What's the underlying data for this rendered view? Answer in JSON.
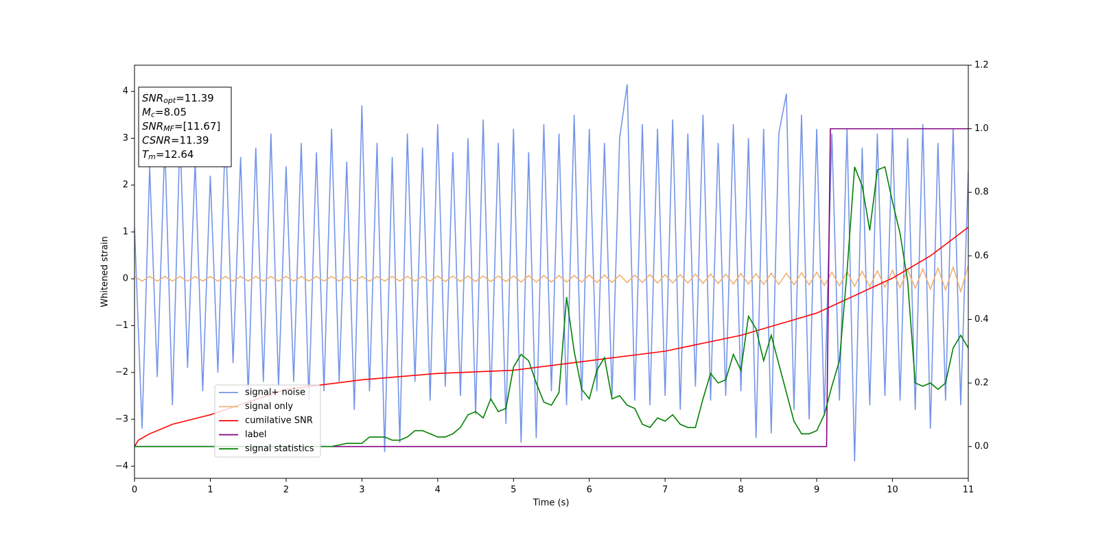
{
  "chart_data": {
    "type": "line",
    "xlabel": "Time (s)",
    "ylabel": "Whitened strain",
    "xlim": [
      0,
      11
    ],
    "xticks": [
      0,
      1,
      2,
      3,
      4,
      5,
      6,
      7,
      8,
      9,
      10,
      11
    ],
    "ylim": [
      -4.26,
      4.56
    ],
    "yticks": [
      {
        "value": -4,
        "label": "−4"
      },
      {
        "value": -3,
        "label": "−3"
      },
      {
        "value": -2,
        "label": "−2"
      },
      {
        "value": -1,
        "label": "−1"
      },
      0,
      1,
      2,
      3,
      4
    ],
    "y2lim": [
      -0.1,
      1.2
    ],
    "y2ticks": [
      {
        "value": 0,
        "label": "0.0"
      },
      {
        "value": 0.2,
        "label": "0.2"
      },
      {
        "value": 0.4,
        "label": "0.4"
      },
      {
        "value": 0.6,
        "label": "0.6"
      },
      {
        "value": 0.8,
        "label": "0.8"
      },
      {
        "value": 1.0,
        "label": "1.0"
      },
      {
        "value": 1.2,
        "label": "1.2"
      }
    ],
    "legend": "lower left",
    "annotations": [
      {
        "base": "SNR",
        "sub": "opt",
        "text": "=11.39"
      },
      {
        "base": "M",
        "sub": "c",
        "text": "=8.05"
      },
      {
        "base": "SNR",
        "sub": "MF",
        "text": "=[11.67]"
      },
      {
        "base": "CSNR",
        "sub": "",
        "text": "=11.39"
      },
      {
        "base": "T",
        "sub": "m",
        "text": "=12.64"
      }
    ],
    "x": [
      0,
      0.1,
      0.2,
      0.3,
      0.4,
      0.5,
      0.6,
      0.7,
      0.8,
      0.9,
      1,
      1.1,
      1.2,
      1.3,
      1.4,
      1.5,
      1.6,
      1.7,
      1.8,
      1.9,
      2,
      2.1,
      2.2,
      2.3,
      2.4,
      2.5,
      2.6,
      2.7,
      2.8,
      2.9,
      3,
      3.1,
      3.2,
      3.3,
      3.4,
      3.5,
      3.6,
      3.7,
      3.8,
      3.9,
      4,
      4.1,
      4.2,
      4.3,
      4.4,
      4.5,
      4.6,
      4.7,
      4.8,
      4.9,
      5,
      5.1,
      5.2,
      5.3,
      5.4,
      5.5,
      5.6,
      5.7,
      5.8,
      5.9,
      6,
      6.1,
      6.2,
      6.3,
      6.4,
      6.5,
      6.6,
      6.7,
      6.8,
      6.9,
      7,
      7.1,
      7.2,
      7.3,
      7.4,
      7.5,
      7.6,
      7.7,
      7.8,
      7.9,
      8,
      8.1,
      8.2,
      8.3,
      8.4,
      8.5,
      8.6,
      8.7,
      8.8,
      8.9,
      9,
      9.1,
      9.2,
      9.3,
      9.4,
      9.5,
      9.6,
      9.7,
      9.8,
      9.9,
      10,
      10.1,
      10.2,
      10.3,
      10.4,
      10.5,
      10.6,
      10.7,
      10.8,
      10.9,
      11
    ],
    "series": [
      {
        "name": "signal+ noise",
        "color": "#7494e8",
        "axis": "y",
        "values": [
          1.1,
          -3.2,
          2.4,
          -2.1,
          2.9,
          -2.7,
          3.1,
          -1.9,
          2.5,
          -2.4,
          2.2,
          -2.0,
          3.2,
          -1.8,
          2.6,
          -2.5,
          2.8,
          -2.2,
          3.1,
          -2.3,
          2.4,
          -2.2,
          2.9,
          -2.6,
          2.7,
          -2.4,
          3.2,
          -2.2,
          2.5,
          -2.8,
          3.7,
          -2.4,
          2.9,
          -3.7,
          2.6,
          -3.5,
          3.1,
          -2.2,
          2.8,
          -2.6,
          3.3,
          -2.3,
          2.7,
          -2.5,
          3.0,
          -2.9,
          3.4,
          -2.6,
          2.9,
          -3.1,
          3.2,
          -3.5,
          2.7,
          -3.4,
          3.3,
          -2.4,
          3.1,
          -2.7,
          3.5,
          -2.6,
          3.2,
          -2.4,
          2.9,
          -2.5,
          3.0,
          4.15,
          -2.6,
          3.3,
          -2.7,
          3.2,
          -2.5,
          3.4,
          -2.8,
          3.1,
          -2.3,
          3.5,
          -2.6,
          2.9,
          -2.5,
          3.3,
          -2.4,
          3.0,
          -3.4,
          3.2,
          -3.3,
          3.1,
          3.95,
          -2.8,
          3.5,
          -3.0,
          3.2,
          -2.9,
          3.1,
          -2.6,
          3.2,
          -3.9,
          2.8,
          -2.7,
          3.1,
          -2.5,
          3.2,
          -2.6,
          3.0,
          -2.8,
          3.3,
          -3.2,
          2.9,
          -2.6,
          3.2,
          -2.7,
          2.3
        ]
      },
      {
        "name": "signal only",
        "color": "#f0b070",
        "axis": "y",
        "values": [
          0.05,
          -0.05,
          0.05,
          -0.05,
          0.05,
          -0.05,
          0.05,
          -0.05,
          0.05,
          -0.05,
          0.05,
          -0.05,
          0.05,
          -0.05,
          0.05,
          -0.05,
          0.05,
          -0.05,
          0.05,
          -0.05,
          0.05,
          -0.05,
          0.05,
          -0.05,
          0.05,
          -0.05,
          0.05,
          -0.05,
          0.05,
          -0.05,
          0.05,
          -0.05,
          0.05,
          -0.05,
          0.05,
          -0.05,
          0.05,
          -0.05,
          0.05,
          -0.05,
          0.06,
          -0.06,
          0.06,
          -0.06,
          0.06,
          -0.06,
          0.06,
          -0.06,
          0.06,
          -0.06,
          0.06,
          -0.07,
          0.07,
          -0.07,
          0.07,
          -0.07,
          0.07,
          -0.07,
          0.07,
          -0.07,
          0.08,
          -0.08,
          0.08,
          -0.08,
          0.08,
          -0.08,
          0.08,
          -0.08,
          0.09,
          -0.09,
          0.09,
          -0.09,
          0.09,
          -0.09,
          0.1,
          -0.1,
          0.1,
          -0.1,
          0.1,
          -0.11,
          0.11,
          -0.11,
          0.11,
          -0.12,
          0.12,
          -0.12,
          0.12,
          -0.13,
          0.13,
          -0.13,
          0.14,
          -0.14,
          0.14,
          -0.15,
          0.15,
          -0.16,
          0.16,
          -0.17,
          0.17,
          -0.18,
          0.18,
          -0.19,
          0.19,
          -0.2,
          0.21,
          -0.22,
          0.23,
          -0.24,
          0.25,
          -0.27,
          0.28
        ]
      },
      {
        "name": "cumilative SNR",
        "color": "#ff0000",
        "axis": "y2",
        "x": [
          0,
          0.05,
          0.2,
          0.5,
          1,
          2,
          3,
          4,
          5,
          6,
          7,
          8,
          9,
          10,
          10.5,
          11
        ],
        "values": [
          0,
          0.02,
          0.04,
          0.07,
          0.1,
          0.18,
          0.21,
          0.23,
          0.24,
          0.27,
          0.3,
          0.35,
          0.42,
          0.53,
          0.6,
          0.69
        ]
      },
      {
        "name": "label",
        "color": "#800080",
        "axis": "y2",
        "x": [
          0,
          9.13,
          9.18,
          11
        ],
        "values": [
          0,
          0,
          1,
          1
        ]
      },
      {
        "name": "signal statistics",
        "color": "#008000",
        "axis": "y2",
        "values": [
          0,
          0,
          0,
          0,
          0,
          0,
          0,
          0,
          0,
          0,
          0,
          0,
          0,
          0,
          0,
          0,
          0,
          0,
          0,
          0,
          0,
          0,
          0,
          0,
          0,
          0,
          0,
          0.005,
          0.01,
          0.01,
          0.01,
          0.03,
          0.03,
          0.03,
          0.02,
          0.02,
          0.03,
          0.05,
          0.05,
          0.04,
          0.03,
          0.03,
          0.04,
          0.06,
          0.1,
          0.11,
          0.09,
          0.15,
          0.11,
          0.12,
          0.25,
          0.29,
          0.27,
          0.2,
          0.14,
          0.13,
          0.17,
          0.47,
          0.3,
          0.18,
          0.15,
          0.24,
          0.28,
          0.15,
          0.16,
          0.13,
          0.12,
          0.07,
          0.06,
          0.09,
          0.08,
          0.1,
          0.07,
          0.06,
          0.06,
          0.15,
          0.23,
          0.2,
          0.21,
          0.29,
          0.24,
          0.41,
          0.37,
          0.27,
          0.35,
          0.26,
          0.17,
          0.08,
          0.04,
          0.04,
          0.05,
          0.1,
          0.19,
          0.27,
          0.55,
          0.88,
          0.82,
          0.68,
          0.87,
          0.88,
          0.77,
          0.67,
          0.52,
          0.2,
          0.19,
          0.2,
          0.18,
          0.2,
          0.31,
          0.35,
          0.31
        ]
      }
    ]
  }
}
